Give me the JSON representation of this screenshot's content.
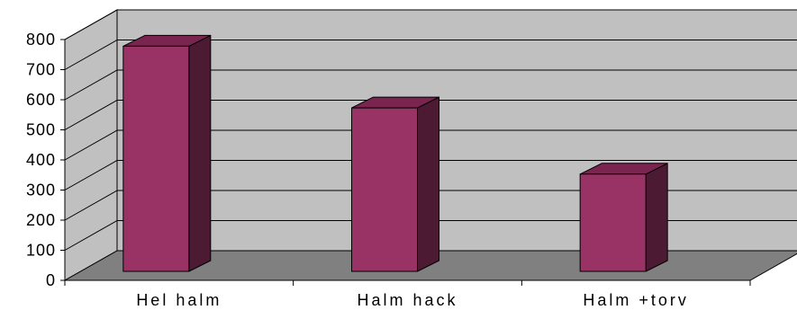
{
  "chart_data": {
    "type": "bar",
    "style": "3d-column",
    "categories": [
      "Hel halm",
      "Halm hack",
      "Halm +torv"
    ],
    "values": [
      760,
      555,
      335
    ],
    "ylim": [
      0,
      800
    ],
    "yticks": [
      "0",
      "100",
      "200",
      "300",
      "400",
      "500",
      "600",
      "700",
      "800"
    ],
    "grid": true,
    "legend": "none",
    "colors": {
      "bar_front": "#993366",
      "bar_top": "#7a2450",
      "bar_side": "#4d1a33",
      "back_wall": "#c0c0c0",
      "floor": "#808080",
      "gridline": "#000000"
    }
  }
}
